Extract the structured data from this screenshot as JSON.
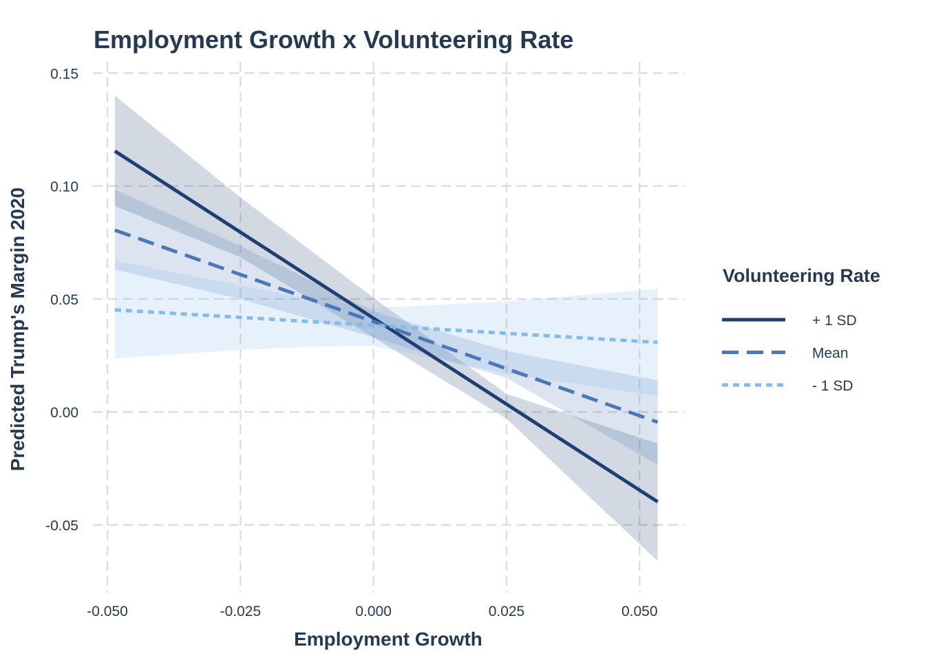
{
  "chart_data": {
    "type": "line",
    "title": "Employment Growth x Volunteering Rate",
    "xlabel": "Employment Growth",
    "ylabel": "Predicted Trump's Margin 2020",
    "xlim": [
      -0.0535,
      0.0585
    ],
    "ylim": [
      -0.08,
      0.155
    ],
    "x_ticks": [
      "-0.050",
      "-0.025",
      "0.000",
      "0.025",
      "0.050"
    ],
    "y_ticks": [
      "0.15",
      "0.10",
      "0.05",
      "0.00",
      "-0.05"
    ],
    "x_tick_values": [
      -0.05,
      -0.025,
      0.0,
      0.025,
      0.05
    ],
    "y_tick_values": [
      0.15,
      0.1,
      0.05,
      0.0,
      -0.05
    ],
    "grid": true,
    "legend": {
      "title": "Volunteering Rate",
      "position": "right"
    },
    "series": [
      {
        "name": "+ 1 SD",
        "color": "#1f3f73",
        "band_color": "#1f3f73",
        "band_opacity": 0.2,
        "line_style": "solid",
        "x": [
          -0.0486,
          0.0534
        ],
        "y": [
          0.1155,
          -0.0398
        ],
        "band_x": [
          -0.0486,
          -0.025,
          0.0,
          0.025,
          0.0534
        ],
        "band_lower": [
          0.0912,
          0.0685,
          0.033,
          -0.003,
          -0.066
        ],
        "band_upper": [
          0.14,
          0.095,
          0.0505,
          0.008,
          -0.014
        ]
      },
      {
        "name": "Mean",
        "color": "#4a78b5",
        "band_color": "#4a78b5",
        "band_opacity": 0.2,
        "line_style": "dashed",
        "x": [
          -0.0486,
          0.0534
        ],
        "y": [
          0.0805,
          -0.0045
        ],
        "band_x": [
          -0.0486,
          -0.025,
          0.0,
          0.025,
          0.0534
        ],
        "band_lower": [
          0.063,
          0.05,
          0.033,
          0.015,
          -0.0235
        ],
        "band_upper": [
          0.0985,
          0.0735,
          0.0445,
          0.027,
          0.014
        ]
      },
      {
        "name": "- 1 SD",
        "color": "#85bbec",
        "band_color": "#85bbec",
        "band_opacity": 0.2,
        "line_style": "dotted",
        "x": [
          -0.0486,
          0.0534
        ],
        "y": [
          0.0452,
          0.0308
        ],
        "band_x": [
          -0.0486,
          -0.025,
          -0.01,
          0.0,
          0.025,
          0.0534
        ],
        "band_lower": [
          0.0237,
          0.0275,
          0.029,
          0.0292,
          0.017,
          0.007
        ],
        "band_upper": [
          0.067,
          0.056,
          0.049,
          0.046,
          0.049,
          0.0545
        ]
      }
    ]
  }
}
